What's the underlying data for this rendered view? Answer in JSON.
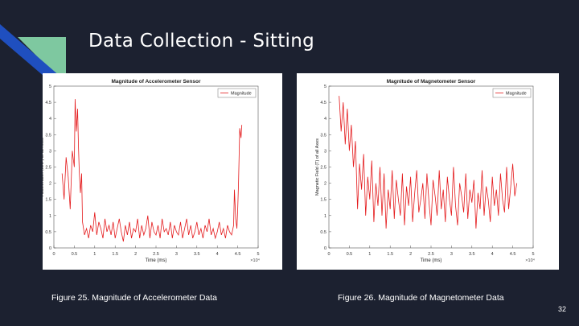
{
  "slide": {
    "title": "Data Collection - Sitting",
    "page_number": "32",
    "captions": [
      "Figure 25. Magnitude of Accelerometer Data",
      "Figure 26. Magnitude of Magnetometer Data"
    ],
    "colors": {
      "background": "#1c2130",
      "accent_blue": "#1f4fbf",
      "accent_green": "#7ec8a0",
      "series": "#e41a1c"
    }
  },
  "chart_data": [
    {
      "type": "line",
      "title": "Magnitude of Accelerometer Sensor",
      "xlabel": "Time (ms)",
      "ylabel": "Acceleration (m/s²) of all Axes",
      "x_exponent": "×10⁴",
      "xlim": [
        0,
        5
      ],
      "ylim": [
        0,
        5
      ],
      "xticks": [
        "0",
        "0.5",
        "1",
        "1.5",
        "2",
        "2.5",
        "3",
        "3.5",
        "4",
        "4.5",
        "5"
      ],
      "yticks": [
        "0",
        "0.5",
        "1",
        "1.5",
        "2",
        "2.5",
        "3",
        "3.5",
        "4",
        "4.5",
        "5"
      ],
      "legend": {
        "entries": [
          "Magnitude"
        ],
        "placement": "top-right"
      },
      "series": [
        {
          "name": "Magnitude",
          "x": [
            0.2,
            0.25,
            0.3,
            0.35,
            0.4,
            0.45,
            0.5,
            0.52,
            0.55,
            0.58,
            0.6,
            0.62,
            0.65,
            0.68,
            0.7,
            0.75,
            0.8,
            0.85,
            0.9,
            0.95,
            1.0,
            1.05,
            1.1,
            1.15,
            1.2,
            1.25,
            1.3,
            1.35,
            1.4,
            1.45,
            1.5,
            1.55,
            1.6,
            1.65,
            1.7,
            1.75,
            1.8,
            1.85,
            1.9,
            1.95,
            2.0,
            2.05,
            2.1,
            2.15,
            2.2,
            2.25,
            2.3,
            2.35,
            2.4,
            2.45,
            2.5,
            2.55,
            2.6,
            2.65,
            2.7,
            2.75,
            2.8,
            2.85,
            2.9,
            2.95,
            3.0,
            3.05,
            3.1,
            3.15,
            3.2,
            3.25,
            3.3,
            3.35,
            3.4,
            3.45,
            3.5,
            3.55,
            3.6,
            3.65,
            3.7,
            3.75,
            3.8,
            3.85,
            3.9,
            3.95,
            4.0,
            4.05,
            4.1,
            4.15,
            4.2,
            4.25,
            4.3,
            4.35,
            4.4,
            4.42,
            4.45,
            4.48,
            4.5,
            4.52,
            4.55,
            4.58,
            4.6
          ],
          "y": [
            2.3,
            1.5,
            2.8,
            2.2,
            1.2,
            3.0,
            2.5,
            4.6,
            3.6,
            4.3,
            3.2,
            2.4,
            1.7,
            2.3,
            0.8,
            0.4,
            0.6,
            0.3,
            0.7,
            0.5,
            1.1,
            0.4,
            0.8,
            0.6,
            0.3,
            0.9,
            0.5,
            0.7,
            0.4,
            0.8,
            0.3,
            0.6,
            0.9,
            0.5,
            0.2,
            0.7,
            0.4,
            0.8,
            0.3,
            0.6,
            0.5,
            0.9,
            0.3,
            0.7,
            0.4,
            0.6,
            1.0,
            0.3,
            0.8,
            0.5,
            0.4,
            0.7,
            0.3,
            0.9,
            0.5,
            0.6,
            0.4,
            0.8,
            0.3,
            0.7,
            0.5,
            0.4,
            0.8,
            0.3,
            0.6,
            0.9,
            0.4,
            0.7,
            0.3,
            0.5,
            0.8,
            0.4,
            0.6,
            0.3,
            0.7,
            0.5,
            0.9,
            0.4,
            0.6,
            0.3,
            0.5,
            0.8,
            0.4,
            0.6,
            0.3,
            0.7,
            0.5,
            0.4,
            0.7,
            1.8,
            0.9,
            0.6,
            1.2,
            2.0,
            3.7,
            3.4,
            3.8
          ]
        }
      ]
    },
    {
      "type": "line",
      "title": "Magnitude of Magnetometer Sensor",
      "xlabel": "Time (ms)",
      "ylabel": "Magnetic Field (T) of all Axes",
      "x_exponent": "×10⁴",
      "xlim": [
        0,
        5
      ],
      "ylim": [
        0,
        5
      ],
      "xticks": [
        "0",
        "0.5",
        "1",
        "1.5",
        "2",
        "2.5",
        "3",
        "3.5",
        "4",
        "4.5",
        "5"
      ],
      "yticks": [
        "0",
        "0.5",
        "1",
        "1.5",
        "2",
        "2.5",
        "3",
        "3.5",
        "4",
        "4.5",
        "5"
      ],
      "legend": {
        "entries": [
          "Magnitude"
        ],
        "placement": "top-right"
      },
      "series": [
        {
          "name": "Magnitude",
          "x": [
            0.25,
            0.3,
            0.35,
            0.4,
            0.45,
            0.5,
            0.55,
            0.6,
            0.65,
            0.7,
            0.75,
            0.8,
            0.85,
            0.9,
            0.95,
            1.0,
            1.05,
            1.1,
            1.15,
            1.2,
            1.25,
            1.3,
            1.35,
            1.4,
            1.45,
            1.5,
            1.55,
            1.6,
            1.65,
            1.7,
            1.75,
            1.8,
            1.85,
            1.9,
            1.95,
            2.0,
            2.05,
            2.1,
            2.15,
            2.2,
            2.25,
            2.3,
            2.35,
            2.4,
            2.45,
            2.5,
            2.55,
            2.6,
            2.65,
            2.7,
            2.75,
            2.8,
            2.85,
            2.9,
            2.95,
            3.0,
            3.05,
            3.1,
            3.15,
            3.2,
            3.25,
            3.3,
            3.35,
            3.4,
            3.45,
            3.5,
            3.55,
            3.6,
            3.65,
            3.7,
            3.75,
            3.8,
            3.85,
            3.9,
            3.95,
            4.0,
            4.05,
            4.1,
            4.15,
            4.2,
            4.25,
            4.3,
            4.35,
            4.4,
            4.45,
            4.5,
            4.55,
            4.6
          ],
          "y": [
            4.7,
            3.6,
            4.5,
            3.2,
            4.3,
            3.0,
            3.8,
            2.5,
            3.3,
            1.2,
            2.6,
            1.8,
            2.9,
            1.0,
            2.2,
            1.5,
            2.7,
            0.8,
            2.0,
            1.3,
            2.5,
            1.0,
            2.3,
            0.6,
            1.8,
            1.2,
            2.4,
            0.9,
            2.1,
            1.5,
            1.0,
            2.3,
            0.7,
            1.9,
            1.3,
            2.2,
            0.8,
            1.7,
            2.4,
            1.1,
            1.5,
            2.0,
            0.9,
            2.3,
            1.4,
            0.7,
            2.1,
            1.6,
            1.0,
            2.4,
            1.2,
            1.8,
            0.8,
            2.2,
            1.5,
            1.0,
            2.5,
            1.3,
            0.7,
            2.0,
            1.6,
            1.1,
            2.3,
            0.9,
            1.8,
            1.4,
            2.1,
            0.6,
            1.7,
            1.2,
            2.4,
            1.0,
            1.9,
            1.5,
            0.8,
            2.2,
            1.3,
            1.8,
            1.0,
            2.3,
            1.5,
            1.1,
            2.5,
            1.2,
            1.9,
            2.6,
            1.6,
            2.0
          ]
        }
      ]
    }
  ]
}
